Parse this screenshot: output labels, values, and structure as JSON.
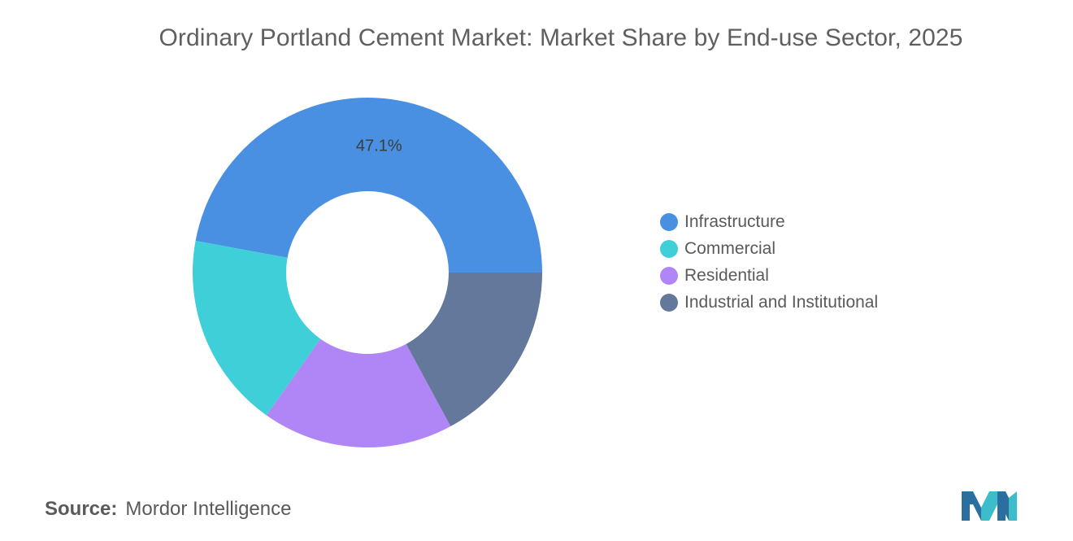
{
  "chart_data": {
    "type": "pie",
    "title": "Ordinary Portland Cement Market: Market Share by End-use Sector, 2025",
    "donut": true,
    "categories": [
      "Infrastructure",
      "Commercial",
      "Residential",
      "Industrial and Institutional"
    ],
    "values": [
      47.1,
      18.1,
      17.7,
      17.1
    ],
    "data_labels": [
      "47.1%",
      "",
      "",
      ""
    ],
    "colors": [
      "#4a90e2",
      "#3ecfd9",
      "#b085f5",
      "#64789c"
    ],
    "legend": "right"
  },
  "source": {
    "label": "Source:",
    "text": "Mordor Intelligence"
  },
  "logo": {
    "icon": "mordor-intelligence-logo",
    "colors": [
      "#2a6fa0",
      "#3dbdc9"
    ]
  }
}
